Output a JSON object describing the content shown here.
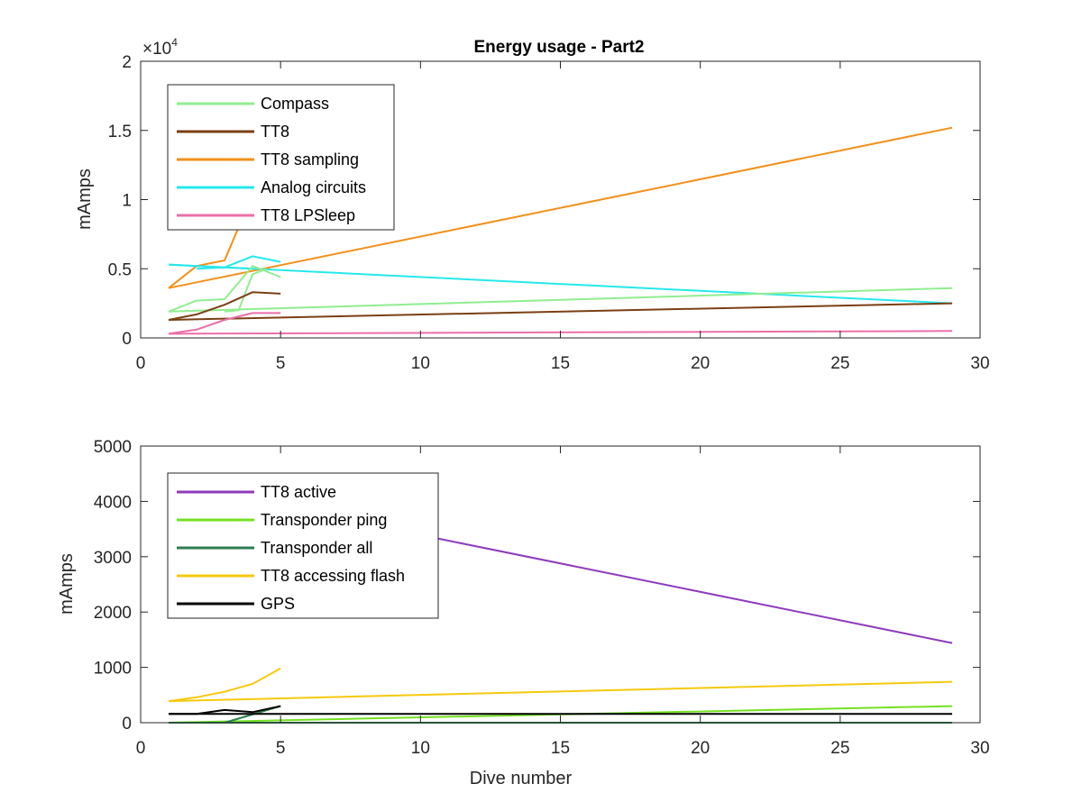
{
  "figure": {
    "title": "Energy usage - Part2"
  },
  "chart_data": [
    {
      "type": "line",
      "title": "Energy usage - Part2",
      "xlabel": "",
      "ylabel": "mAmps",
      "y_exponent_label": "×10",
      "y_exponent": "4",
      "xlim": [
        0,
        30
      ],
      "ylim": [
        0,
        20000
      ],
      "xticks": [
        0,
        5,
        10,
        15,
        20,
        25,
        30
      ],
      "yticks": [
        0,
        5000,
        10000,
        15000,
        20000
      ],
      "ytick_labels": [
        "0",
        "0.5",
        "1",
        "1.5",
        "2"
      ],
      "grid": false,
      "legend_position": "top-left",
      "legend": [
        {
          "name": "Compass",
          "color": "#90ee90"
        },
        {
          "name": "TT8",
          "color": "#7b3f14"
        },
        {
          "name": "TT8 sampling",
          "color": "#f39019"
        },
        {
          "name": "Analog circuits",
          "color": "#26e8ec"
        },
        {
          "name": "TT8 LPSleep",
          "color": "#ea6fa9"
        }
      ],
      "series": [
        {
          "color": "#f39019",
          "x": [
            1,
            29
          ],
          "y": [
            3600,
            15200
          ]
        },
        {
          "color": "#f39019",
          "x": [
            1,
            2,
            3,
            3.5
          ],
          "y": [
            3600,
            5200,
            5600,
            8000
          ]
        },
        {
          "color": "#26e8ec",
          "x": [
            1,
            29
          ],
          "y": [
            5300,
            2500
          ]
        },
        {
          "color": "#26e8ec",
          "x": [
            1,
            2,
            3,
            4,
            5
          ],
          "y": [
            5300,
            5200,
            5100,
            5900,
            5500
          ]
        },
        {
          "color": "#26e8ec",
          "x": [
            2,
            3,
            4
          ],
          "y": [
            5000,
            5100,
            5000
          ]
        },
        {
          "color": "#90ee90",
          "x": [
            1,
            29
          ],
          "y": [
            1900,
            3600
          ]
        },
        {
          "color": "#90ee90",
          "x": [
            1,
            2,
            3,
            4,
            5
          ],
          "y": [
            1900,
            2700,
            2800,
            5200,
            4400
          ]
        },
        {
          "color": "#90ee90",
          "x": [
            3,
            3.5,
            4,
            4.5
          ],
          "y": [
            1900,
            2000,
            4600,
            5000
          ]
        },
        {
          "color": "#7b3f14",
          "x": [
            1,
            29
          ],
          "y": [
            1300,
            2500
          ]
        },
        {
          "color": "#7b3f14",
          "x": [
            1,
            2,
            3,
            4,
            5
          ],
          "y": [
            1300,
            1700,
            2400,
            3300,
            3200
          ]
        },
        {
          "color": "#ea6fa9",
          "x": [
            1,
            29
          ],
          "y": [
            300,
            500
          ]
        },
        {
          "color": "#ea6fa9",
          "x": [
            1,
            2,
            3,
            4,
            5
          ],
          "y": [
            300,
            600,
            1300,
            1800,
            1800
          ]
        }
      ]
    },
    {
      "type": "line",
      "title": "",
      "xlabel": "Dive number",
      "ylabel": "mAmps",
      "xlim": [
        0,
        30
      ],
      "ylim": [
        0,
        5000
      ],
      "xticks": [
        0,
        5,
        10,
        15,
        20,
        25,
        30
      ],
      "yticks": [
        0,
        1000,
        2000,
        3000,
        4000,
        5000
      ],
      "ytick_labels": [
        "0",
        "1000",
        "2000",
        "3000",
        "4000",
        "5000"
      ],
      "grid": false,
      "legend_position": "top-left",
      "legend": [
        {
          "name": "TT8 active",
          "color": "#8e3bbd"
        },
        {
          "name": "Transponder ping",
          "color": "#74e022"
        },
        {
          "name": "Transponder all",
          "color": "#2e7d4f"
        },
        {
          "name": "TT8 accessing flash",
          "color": "#f6c90e"
        },
        {
          "name": "GPS",
          "color": "#000000"
        }
      ],
      "series": [
        {
          "color": "#8e3bbd",
          "x": [
            10.6,
            29
          ],
          "y": [
            3330,
            1440
          ]
        },
        {
          "color": "#f6c90e",
          "x": [
            1,
            29
          ],
          "y": [
            390,
            740
          ]
        },
        {
          "color": "#f6c90e",
          "x": [
            1,
            2,
            3,
            4,
            5
          ],
          "y": [
            390,
            460,
            560,
            700,
            980
          ]
        },
        {
          "color": "#74e022",
          "x": [
            1,
            29
          ],
          "y": [
            0,
            300
          ]
        },
        {
          "color": "#74e022",
          "x": [
            3,
            4,
            5
          ],
          "y": [
            0,
            150,
            300
          ]
        },
        {
          "color": "#2e7d4f",
          "x": [
            1,
            29
          ],
          "y": [
            0,
            0
          ]
        },
        {
          "color": "#2e7d4f",
          "x": [
            3,
            4,
            5
          ],
          "y": [
            0,
            150,
            300
          ]
        },
        {
          "color": "#000000",
          "x": [
            1,
            29
          ],
          "y": [
            160,
            160
          ]
        },
        {
          "color": "#000000",
          "x": [
            1,
            2,
            3,
            4,
            5
          ],
          "y": [
            160,
            160,
            230,
            190,
            300
          ]
        }
      ]
    }
  ]
}
